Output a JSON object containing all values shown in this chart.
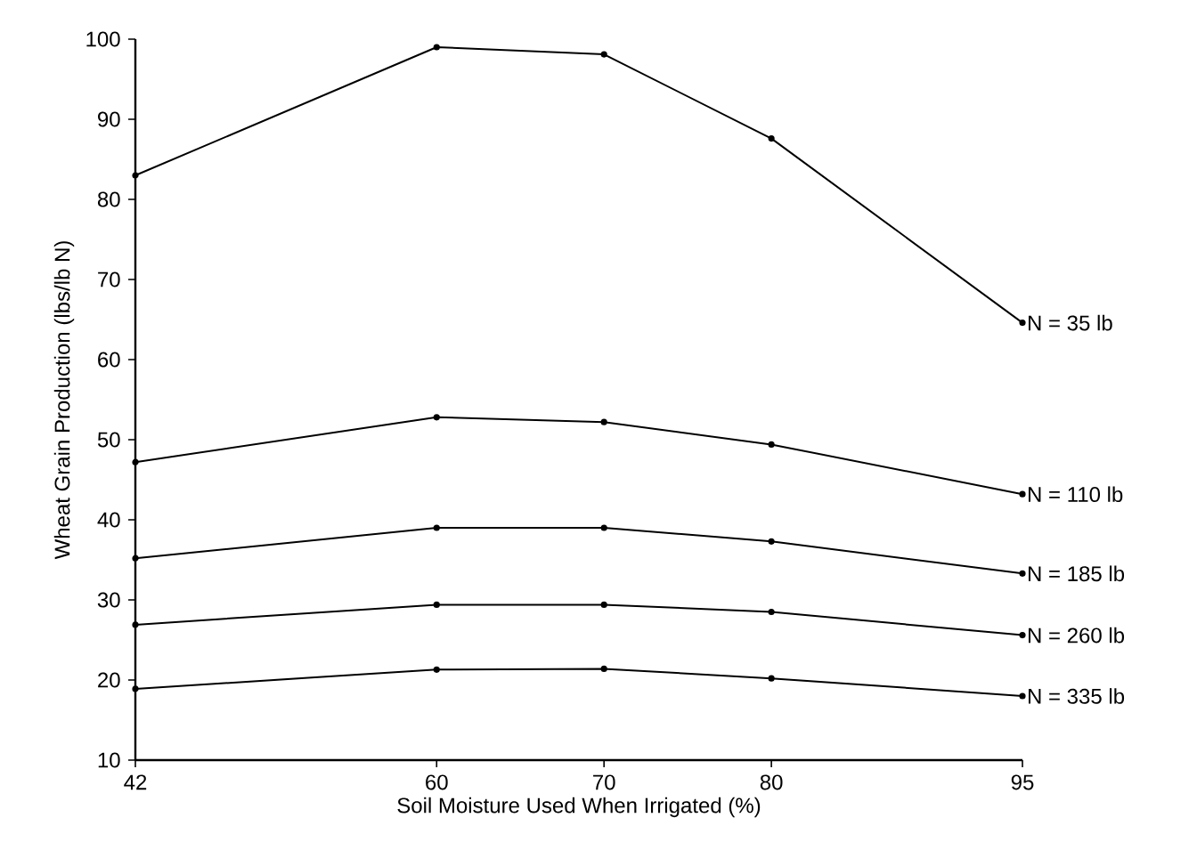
{
  "chart_data": {
    "type": "line",
    "xlabel": "Soil Moisture Used When Irrigated (%)",
    "ylabel": "Wheat Grain Production (lbs/lb N)",
    "x": [
      42,
      60,
      70,
      80,
      95
    ],
    "series": [
      {
        "name": "N = 35 lb",
        "color": "#000000",
        "values": [
          83.0,
          99.0,
          98.1,
          87.6,
          64.6
        ]
      },
      {
        "name": "N = 110 lb",
        "color": "#000000",
        "values": [
          47.2,
          52.8,
          52.2,
          49.4,
          43.2
        ]
      },
      {
        "name": "N = 185 lb",
        "color": "#000000",
        "values": [
          35.2,
          39.0,
          39.0,
          37.3,
          33.3
        ]
      },
      {
        "name": "N = 260 lb",
        "color": "#000000",
        "values": [
          26.9,
          29.4,
          29.4,
          28.5,
          25.6
        ]
      },
      {
        "name": "N = 335 lb",
        "color": "#000000",
        "values": [
          18.9,
          21.3,
          21.4,
          20.2,
          18.0
        ]
      }
    ],
    "xlim": [
      42,
      95
    ],
    "xticks": [
      42,
      60,
      70,
      80,
      95
    ],
    "ylim": [
      10,
      100
    ],
    "yticks": [
      10,
      20,
      30,
      40,
      50,
      60,
      70,
      80,
      90,
      100
    ],
    "grid": false,
    "legend": false,
    "marker": "circle",
    "line_style": "solid"
  }
}
